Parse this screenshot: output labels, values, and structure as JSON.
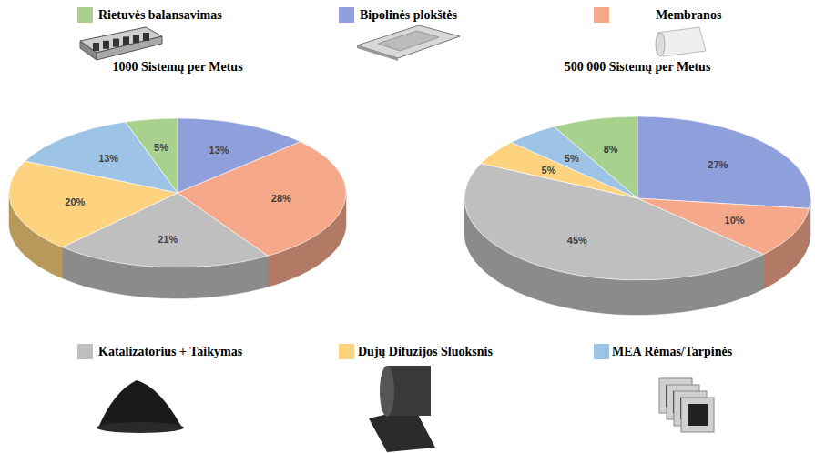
{
  "chart_data": {
    "type": "pie",
    "categories": [
      "Bipolinės plokštės",
      "Membranos",
      "Katalizatorius + Taikymas",
      "Dujų Difuzijos Sluoksnis",
      "MEA Rėmas/Tarpinės",
      "Rietuvės balansavimas"
    ],
    "colors": [
      "#8f9fdc",
      "#f6a88a",
      "#bfbfbf",
      "#fdd37f",
      "#9dc3e6",
      "#a9d18e"
    ],
    "data_labels": true,
    "series": [
      {
        "name": "1000 Sistemų per Metus",
        "values": [
          13,
          28,
          21,
          20,
          13,
          5
        ],
        "value_labels": [
          "13%",
          "28%",
          "21%",
          "20%",
          "13%",
          "5%"
        ]
      },
      {
        "name": "500 000 Sistemų per Metus",
        "values": [
          27,
          10,
          45,
          5,
          5,
          8
        ],
        "value_labels": [
          "27%",
          "10%",
          "45%",
          "5%",
          "5%",
          "8%"
        ]
      }
    ]
  }
}
